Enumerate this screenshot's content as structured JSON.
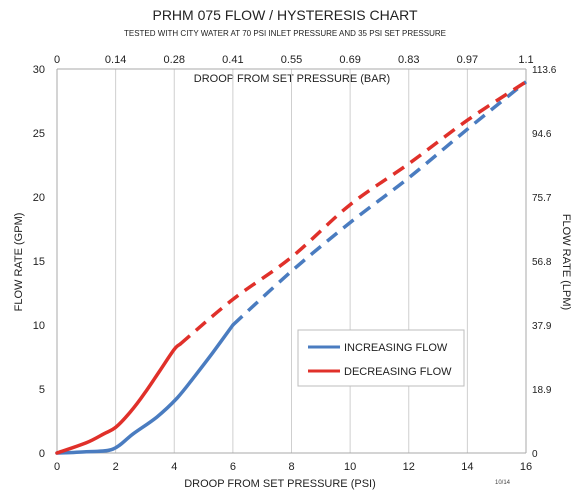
{
  "chart_data": {
    "type": "line",
    "title": "PRHM 075 FLOW / HYSTERESIS CHART",
    "subtitle": "TESTED WITH CITY WATER AT 70 PSI INLET PRESSURE AND 35 PSI SET PRESSURE",
    "xlabel": "DROOP FROM SET PRESSURE (PSI)",
    "ylabel": "FLOW RATE (GPM)",
    "x2label": "DROOP FROM SET PRESSURE (BAR)",
    "y2label": "FLOW RATE (LPM)",
    "footnote": "10/14",
    "xlim": [
      0,
      16
    ],
    "ylim": [
      0,
      30
    ],
    "x_ticks": [
      "0",
      "2",
      "4",
      "6",
      "8",
      "10",
      "12",
      "14",
      "16"
    ],
    "y_ticks": [
      "0",
      "5",
      "10",
      "15",
      "20",
      "25",
      "30"
    ],
    "x2_ticks": [
      "0",
      "0.14",
      "0.28",
      "0.41",
      "0.55",
      "0.69",
      "0.83",
      "0.97",
      "1.1"
    ],
    "y2_ticks": [
      "0",
      "18.9",
      "37.9",
      "56.8",
      "75.7",
      "94.6",
      "113.6"
    ],
    "grid": "vertical",
    "legend_position": "center-right",
    "series": [
      {
        "name": "INCREASING FLOW",
        "color": "#4a7cc0",
        "solid": [
          [
            0,
            0
          ],
          [
            1,
            0.1
          ],
          [
            1.9,
            0.3
          ],
          [
            2.6,
            1.5
          ],
          [
            3.4,
            2.8
          ],
          [
            4.1,
            4.3
          ],
          [
            4.7,
            6
          ],
          [
            5.3,
            7.8
          ],
          [
            6,
            10
          ]
        ],
        "dashed": [
          [
            6,
            10
          ],
          [
            8,
            14.2
          ],
          [
            10,
            18
          ],
          [
            12,
            21.5
          ],
          [
            14,
            25.3
          ],
          [
            16,
            29
          ]
        ]
      },
      {
        "name": "DECREASING FLOW",
        "color": "#e0302a",
        "solid": [
          [
            0,
            0
          ],
          [
            1,
            0.8
          ],
          [
            1.6,
            1.5
          ],
          [
            2,
            2
          ],
          [
            2.5,
            3.2
          ],
          [
            3,
            4.7
          ],
          [
            3.5,
            6.4
          ],
          [
            4,
            8.1
          ],
          [
            4.2,
            8.5
          ]
        ],
        "dashed": [
          [
            4.2,
            8.5
          ],
          [
            6,
            12
          ],
          [
            8,
            15.3
          ],
          [
            10,
            19.4
          ],
          [
            12,
            22.6
          ],
          [
            14,
            26
          ],
          [
            16,
            29
          ]
        ]
      }
    ]
  }
}
